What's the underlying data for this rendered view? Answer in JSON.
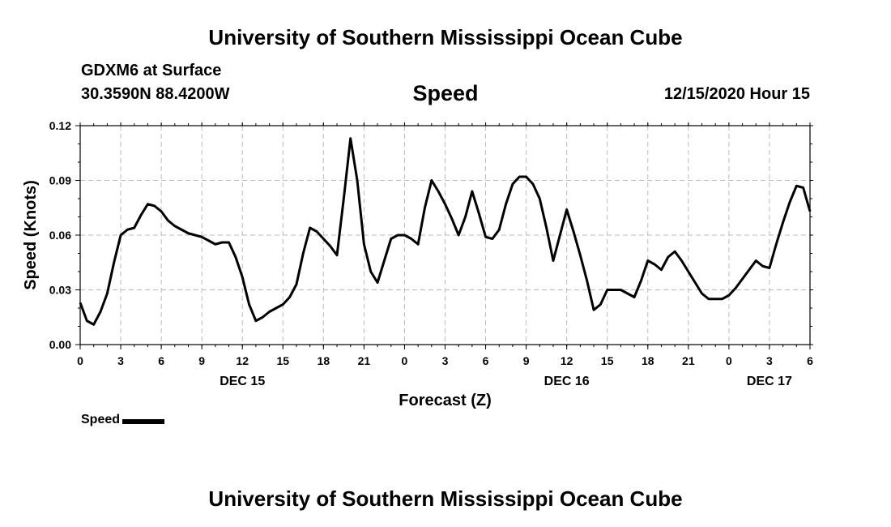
{
  "header": {
    "title": "University of Southern Mississippi Ocean Cube",
    "station": "GDXM6 at Surface",
    "coords": "30.3590N 88.4200W",
    "datetime": "12/15/2020 Hour 15"
  },
  "footer": {
    "title": "University of Southern Mississippi Ocean Cube"
  },
  "legend": {
    "label": "Speed"
  },
  "chart_data": {
    "type": "line",
    "title": "Speed",
    "xlabel": "Forecast (Z)",
    "ylabel": "Speed (Knots)",
    "xlim": [
      0,
      54
    ],
    "ylim": [
      0,
      0.12
    ],
    "grid": true,
    "y_ticks": [
      "0.00",
      "0.03",
      "0.06",
      "0.09",
      "0.12"
    ],
    "x_ticks": [
      "0",
      "3",
      "6",
      "9",
      "12",
      "15",
      "18",
      "21",
      "0",
      "3",
      "6",
      "9",
      "12",
      "15",
      "18",
      "21",
      "0",
      "3",
      "6"
    ],
    "day_labels": [
      {
        "label": "DEC 15",
        "x": 12
      },
      {
        "label": "DEC 16",
        "x": 36
      },
      {
        "label": "DEC 17",
        "x": 51
      }
    ],
    "series": [
      {
        "name": "Speed",
        "color": "#000000",
        "x": [
          0,
          0.5,
          1,
          1.5,
          2,
          2.5,
          3,
          3.5,
          4,
          4.5,
          5,
          5.5,
          6,
          6.5,
          7,
          7.5,
          8,
          8.5,
          9,
          9.5,
          10,
          10.5,
          11,
          11.5,
          12,
          12.5,
          13,
          13.5,
          14,
          14.5,
          15,
          15.5,
          16,
          16.5,
          17,
          17.5,
          18,
          18.5,
          19,
          19.5,
          20,
          20.5,
          21,
          21.5,
          22,
          22.5,
          23,
          23.5,
          24,
          24.5,
          25,
          25.5,
          26,
          26.5,
          27,
          27.5,
          28,
          28.5,
          29,
          29.5,
          30,
          30.5,
          31,
          31.5,
          32,
          32.5,
          33,
          33.5,
          34,
          34.5,
          35,
          35.5,
          36,
          36.5,
          37,
          37.5,
          38,
          38.5,
          39,
          39.5,
          40,
          40.5,
          41,
          41.5,
          42,
          42.5,
          43,
          43.5,
          44,
          44.5,
          45,
          45.5,
          46,
          46.5,
          47,
          47.5,
          48,
          48.5,
          49,
          49.5,
          50,
          50.5,
          51,
          51.5,
          52,
          52.5,
          53,
          53.5,
          54
        ],
        "values": [
          0.023,
          0.013,
          0.011,
          0.018,
          0.028,
          0.045,
          0.06,
          0.063,
          0.064,
          0.071,
          0.077,
          0.076,
          0.073,
          0.068,
          0.065,
          0.063,
          0.061,
          0.06,
          0.059,
          0.057,
          0.055,
          0.056,
          0.056,
          0.048,
          0.037,
          0.022,
          0.013,
          0.015,
          0.018,
          0.02,
          0.022,
          0.026,
          0.033,
          0.05,
          0.064,
          0.062,
          0.058,
          0.054,
          0.049,
          0.08,
          0.113,
          0.09,
          0.055,
          0.04,
          0.034,
          0.046,
          0.058,
          0.06,
          0.06,
          0.058,
          0.055,
          0.075,
          0.09,
          0.084,
          0.077,
          0.069,
          0.06,
          0.07,
          0.084,
          0.072,
          0.059,
          0.058,
          0.063,
          0.077,
          0.088,
          0.092,
          0.092,
          0.088,
          0.08,
          0.064,
          0.046,
          0.06,
          0.074,
          0.062,
          0.049,
          0.035,
          0.019,
          0.022,
          0.03,
          0.03,
          0.03,
          0.028,
          0.026,
          0.035,
          0.046,
          0.044,
          0.041,
          0.048,
          0.051,
          0.046,
          0.04,
          0.034,
          0.028,
          0.025,
          0.025,
          0.025,
          0.027,
          0.031,
          0.036,
          0.041,
          0.046,
          0.043,
          0.042,
          0.055,
          0.067,
          0.078,
          0.087,
          0.086,
          0.073
        ]
      }
    ]
  }
}
